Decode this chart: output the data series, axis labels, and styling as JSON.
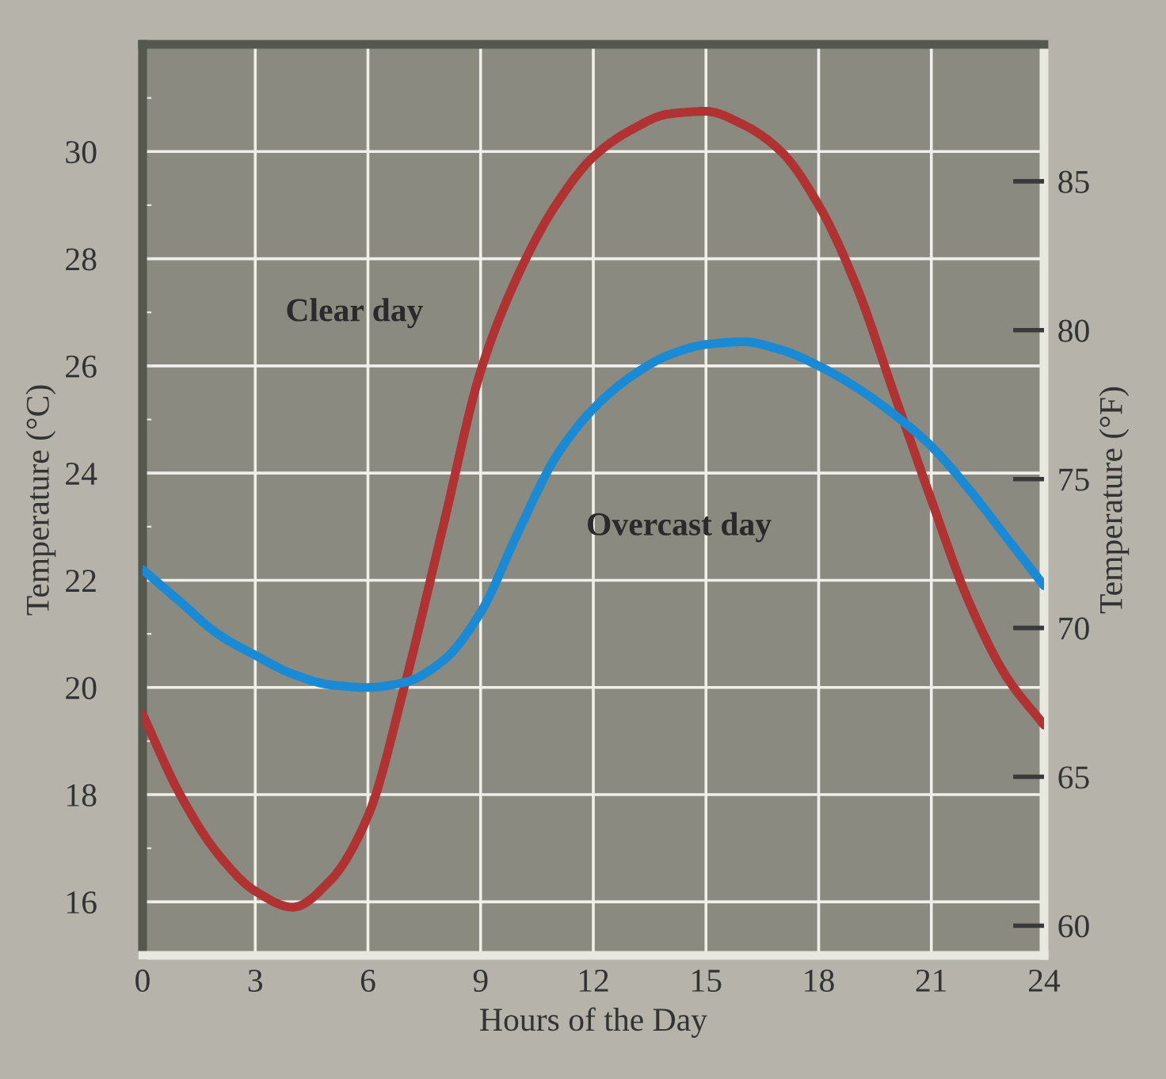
{
  "chart_data": {
    "type": "line",
    "xlabel": "Hours of the Day",
    "ylabel": "Temperature (°C)",
    "y2label": "Temperature (°F)",
    "x": [
      0,
      1,
      2,
      3,
      4,
      5,
      6,
      7,
      8,
      9,
      10,
      11,
      12,
      13,
      14,
      15,
      16,
      17,
      18,
      19,
      20,
      21,
      22,
      23,
      24
    ],
    "series": [
      {
        "name": "Clear day",
        "color": "#b03232",
        "values": [
          19.5,
          18.0,
          16.9,
          16.2,
          15.9,
          16.4,
          17.6,
          20.1,
          23.0,
          25.9,
          27.7,
          29.0,
          29.9,
          30.4,
          30.7,
          30.75,
          30.5,
          30.0,
          29.0,
          27.5,
          25.5,
          23.5,
          21.6,
          20.2,
          19.3
        ]
      },
      {
        "name": "Overcast day",
        "color": "#1a8ad4",
        "values": [
          22.2,
          21.6,
          21.0,
          20.6,
          20.25,
          20.05,
          20.0,
          20.1,
          20.5,
          21.4,
          22.9,
          24.3,
          25.2,
          25.8,
          26.2,
          26.4,
          26.45,
          26.3,
          26.0,
          25.6,
          25.1,
          24.5,
          23.7,
          22.8,
          21.9
        ]
      }
    ],
    "xlim": [
      0,
      24
    ],
    "xticks": [
      0,
      3,
      6,
      9,
      12,
      15,
      18,
      21,
      24
    ],
    "ylim": [
      15,
      32
    ],
    "yticks": [
      {
        "value": 15,
        "label": null
      },
      16,
      {
        "value": 17,
        "label": null
      },
      18,
      {
        "value": 19,
        "label": null
      },
      20,
      {
        "value": 21,
        "label": null
      },
      22,
      {
        "value": 23,
        "label": null
      },
      24,
      {
        "value": 25,
        "label": null
      },
      26,
      {
        "value": 27,
        "label": null
      },
      28,
      {
        "value": 29,
        "label": null
      },
      30,
      {
        "value": 31,
        "label": null
      }
    ],
    "y2lim": [
      59,
      89.6
    ],
    "y2ticks": [
      60,
      65,
      70,
      75,
      80,
      85
    ],
    "grid": true,
    "marker": "none",
    "line_style": "solid"
  }
}
